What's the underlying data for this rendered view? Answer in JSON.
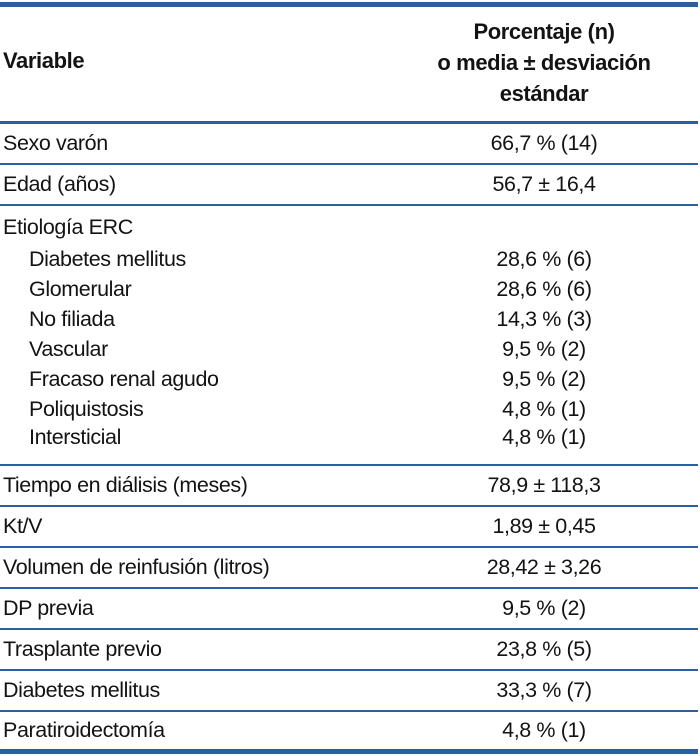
{
  "colors": {
    "rule_blue": "#2b5f9e",
    "text": "#131313",
    "background": "#ffffff"
  },
  "table": {
    "header": {
      "variable_label": "Variable",
      "value_label_lines": [
        "Porcentaje (n)",
        "o media ± desviación",
        "estándar"
      ]
    },
    "rows": [
      {
        "label": "Sexo varón",
        "value": "66,7 % (14)"
      },
      {
        "label": "Edad (años)",
        "value": "56,7 ± 16,4"
      },
      {
        "label": "Etiología ERC",
        "value": ""
      },
      {
        "label": "Diabetes mellitus",
        "value": "28,6 % (6)",
        "indent": true
      },
      {
        "label": "Glomerular",
        "value": "28,6 % (6)",
        "indent": true
      },
      {
        "label": "No filiada",
        "value": "14,3 % (3)",
        "indent": true
      },
      {
        "label": "Vascular",
        "value": "9,5 % (2)",
        "indent": true
      },
      {
        "label": "Fracaso renal agudo",
        "value": "9,5 % (2)",
        "indent": true
      },
      {
        "label": "Poliquistosis",
        "value": "4,8 % (1)",
        "indent": true
      },
      {
        "label": "Intersticial",
        "value": "4,8 % (1)",
        "indent": true
      },
      {
        "label": "Tiempo en diálisis (meses)",
        "value": "78,9 ± 118,3"
      },
      {
        "label": "Kt/V",
        "value": "1,89 ± 0,45"
      },
      {
        "label": "Volumen de reinfusión (litros)",
        "value": "28,42 ± 3,26"
      },
      {
        "label": "DP previa",
        "value": "9,5 % (2)"
      },
      {
        "label": "Trasplante previo",
        "value": "23,8 % (5)"
      },
      {
        "label": "Diabetes mellitus",
        "value": "33,3 % (7)"
      },
      {
        "label": "Paratiroidectomía",
        "value": "4,8 % (1)"
      }
    ]
  }
}
